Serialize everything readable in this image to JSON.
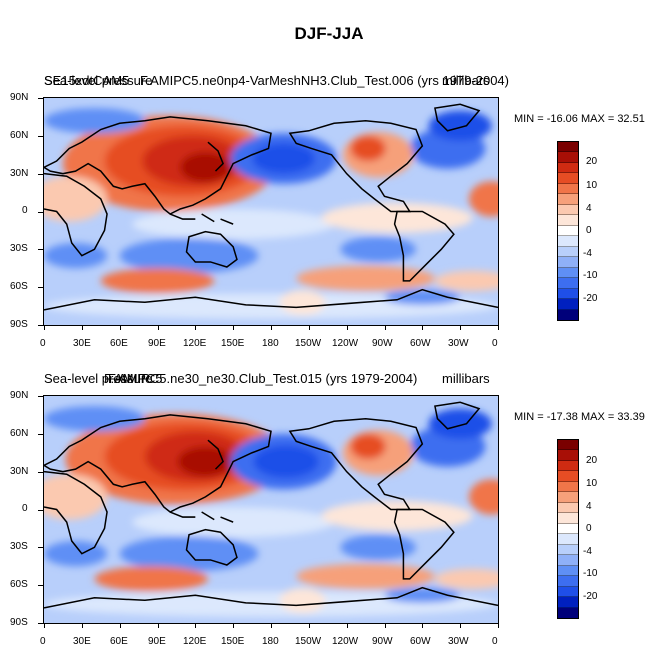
{
  "figure": {
    "title": "DJF-JJA"
  },
  "colors": {
    "palette": [
      "#00007a",
      "#0020bf",
      "#1f4fe8",
      "#3d6ef0",
      "#5f8ff5",
      "#8fb0f8",
      "#b8cffb",
      "#dce8fd",
      "#ffffff",
      "#fde6d9",
      "#fbc9b0",
      "#f6a07a",
      "#f07549",
      "#e64d24",
      "#cf2b12",
      "#a80f06",
      "#7a0000"
    ],
    "land_outline": "#000000"
  },
  "panels": [
    {
      "label_left": "Sea-level pressure",
      "label_overlap": "SE15xdtCAM5",
      "title": "F.AMIPC5.ne0np4-VarMeshNH3.Club_Test.006 (yrs 1979-2004)",
      "units": "millibars",
      "minmax": "MIN = -16.06 MAX =  32.51"
    },
    {
      "label_left": "Sea-level pressure",
      "label_overlap": "F.AMIPC5",
      "title": "F.AMIPC5.ne30_ne30.Club_Test.015 (yrs 1979-2004)",
      "units": "millibars",
      "minmax": "MIN = -17.38 MAX =  33.39"
    }
  ],
  "chart_data": [
    {
      "type": "heatmap",
      "title": "F.AMIPC5.ne0np4-VarMeshNH3.Club_Test.006 (yrs 1979-2004)",
      "variable": "Sea-level pressure",
      "units": "millibars",
      "x_tick_labels": [
        "0",
        "30E",
        "60E",
        "90E",
        "120E",
        "150E",
        "180",
        "150W",
        "120W",
        "90W",
        "60W",
        "30W",
        "0"
      ],
      "y_tick_labels": [
        "90N",
        "60N",
        "30N",
        "0",
        "30S",
        "60S",
        "90S"
      ],
      "xlim": [
        0,
        360
      ],
      "ylim": [
        -90,
        90
      ],
      "min": -16.06,
      "max": 32.51,
      "colorbar_levels": [
        -24,
        -22,
        -20,
        -18,
        -16,
        -14,
        -12,
        -10,
        -8,
        -6,
        -4,
        -2,
        0,
        2,
        4,
        6,
        8,
        10,
        12,
        14,
        16,
        18,
        20,
        22,
        24
      ],
      "colorbar_tick_labels": [
        "20",
        "10",
        "4",
        "0",
        "-4",
        "-10",
        "-20"
      ]
    },
    {
      "type": "heatmap",
      "title": "F.AMIPC5.ne30_ne30.Club_Test.015 (yrs 1979-2004)",
      "variable": "Sea-level pressure",
      "units": "millibars",
      "x_tick_labels": [
        "0",
        "30E",
        "60E",
        "90E",
        "120E",
        "150E",
        "180",
        "150W",
        "120W",
        "90W",
        "60W",
        "30W",
        "0"
      ],
      "y_tick_labels": [
        "90N",
        "60N",
        "30N",
        "0",
        "30S",
        "60S",
        "90S"
      ],
      "xlim": [
        0,
        360
      ],
      "ylim": [
        -90,
        90
      ],
      "min": -17.38,
      "max": 33.39,
      "colorbar_levels": [
        -24,
        -22,
        -20,
        -18,
        -16,
        -14,
        -12,
        -10,
        -8,
        -6,
        -4,
        -2,
        0,
        2,
        4,
        6,
        8,
        10,
        12,
        14,
        16,
        18,
        20,
        22,
        24
      ],
      "colorbar_tick_labels": [
        "20",
        "10",
        "4",
        "0",
        "-4",
        "-10",
        "-20"
      ]
    }
  ]
}
